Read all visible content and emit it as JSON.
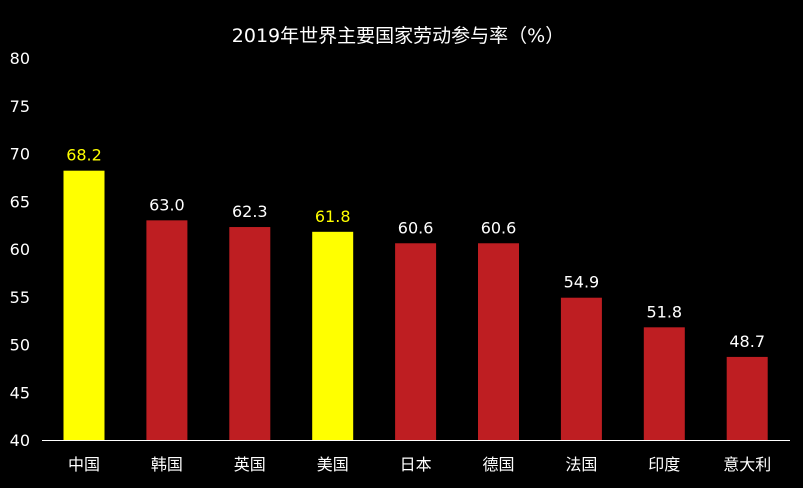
{
  "chart_data": {
    "type": "bar",
    "title": "2019年世界主要国家劳动参与率（%）",
    "categories": [
      "中国",
      "韩国",
      "英国",
      "美国",
      "日本",
      "德国",
      "法国",
      "印度",
      "意大利"
    ],
    "values": [
      68.2,
      63.0,
      62.3,
      61.8,
      60.6,
      60.6,
      54.9,
      51.8,
      48.7
    ],
    "value_labels": [
      "68.2",
      "63.0",
      "62.3",
      "61.8",
      "60.6",
      "60.6",
      "54.9",
      "51.8",
      "48.7"
    ],
    "highlight": [
      true,
      false,
      false,
      true,
      false,
      false,
      false,
      false,
      false
    ],
    "ylim": [
      40,
      80
    ],
    "yticks": [
      40,
      45,
      50,
      55,
      60,
      65,
      70,
      75,
      80
    ],
    "grid": false,
    "legend": "none",
    "xlabel": "",
    "ylabel": ""
  },
  "colors": {
    "background": "#000000",
    "bar_default": "#BE1E22",
    "bar_highlight": "#FFFF00",
    "text": "#FFFFFF",
    "label_highlight": "#FFFF00",
    "axis": "#FFFFFF"
  }
}
